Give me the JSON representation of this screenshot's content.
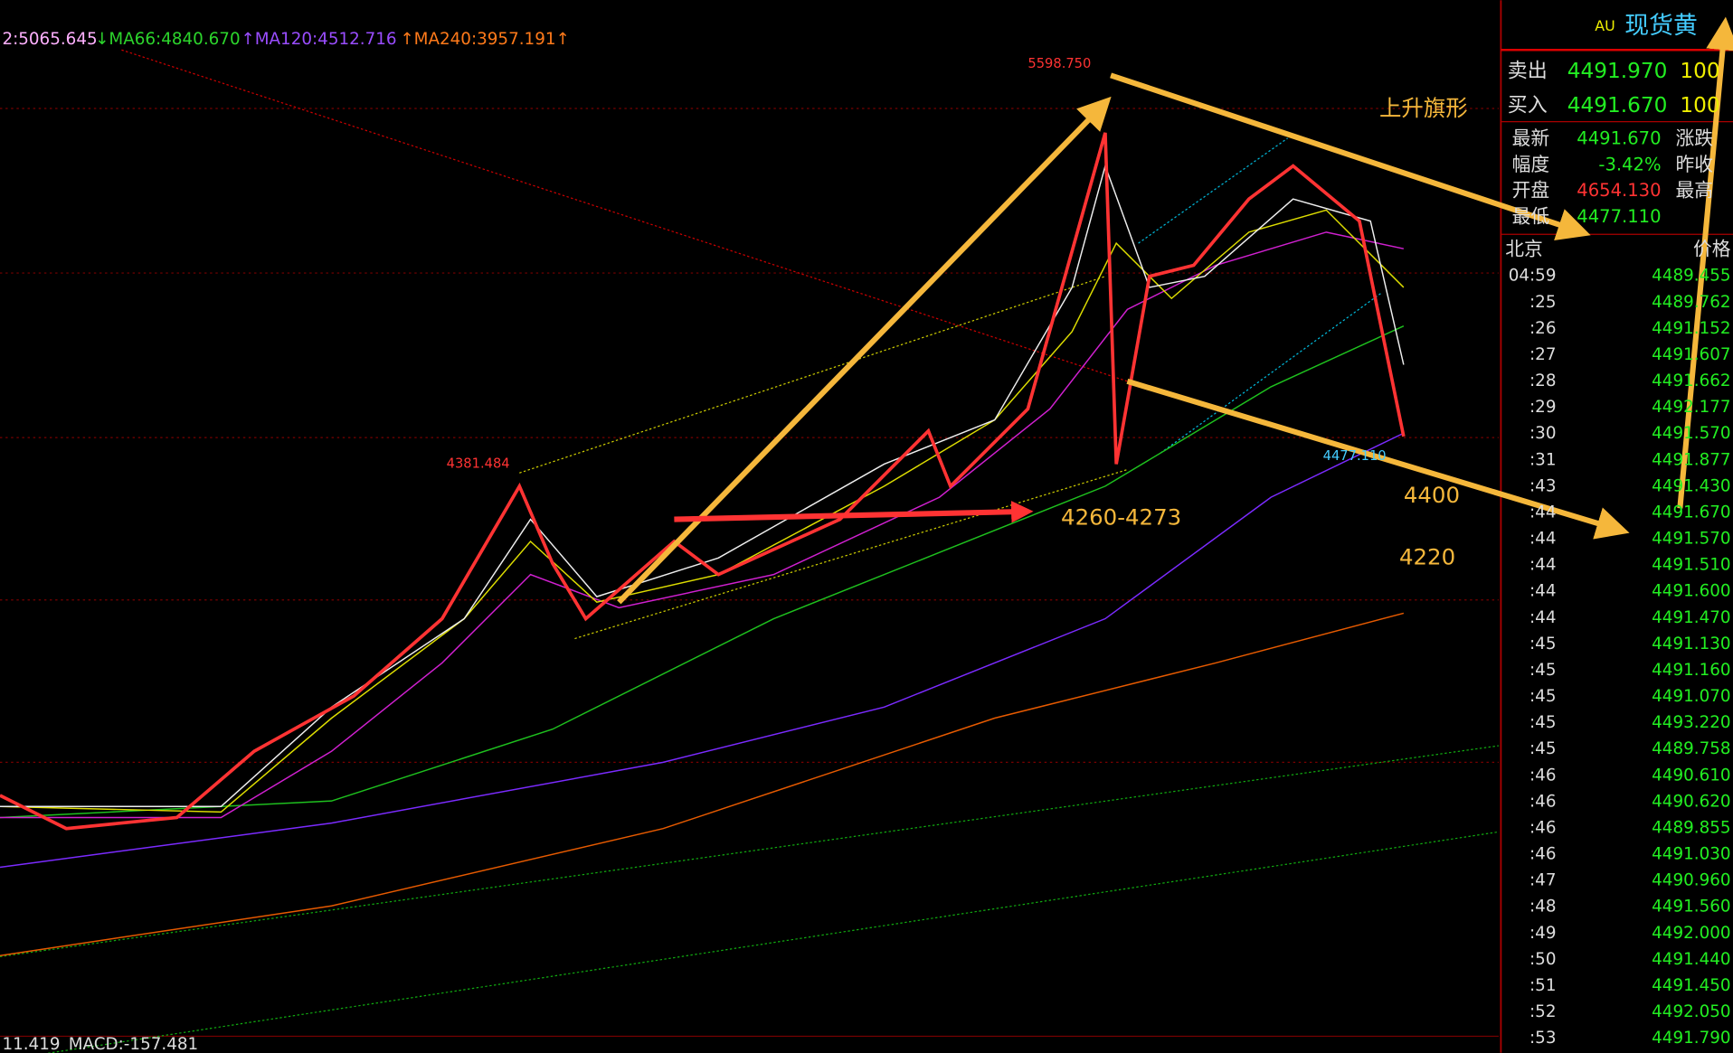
{
  "legend": {
    "ma_first": "2:5065.645",
    "ma66": "↓MA66:4840.670",
    "ma120": "↑MA120:4512.716",
    "ma240": "↑MA240:3957.191↑"
  },
  "annotations": {
    "high": "5598.750",
    "mid_high": "4381.484",
    "low": "4477.110",
    "pattern": "上升旗形",
    "target": "4260-4273",
    "level1": "4400",
    "level2": "4220"
  },
  "indicator": {
    "left": "11.419",
    "macd": "MACD:-157.481"
  },
  "quote": {
    "code": "AU",
    "name": "现货黄",
    "rows": [
      [
        "卖出",
        "4491.970",
        "100"
      ],
      [
        "买入",
        "4491.670",
        "100"
      ]
    ],
    "stats": [
      [
        "最新",
        "4491.670",
        "涨跌"
      ],
      [
        "幅度",
        "-3.42%",
        "昨收"
      ],
      [
        "开盘",
        "4654.130",
        "最高"
      ],
      [
        "最低",
        "4477.110"
      ]
    ]
  },
  "ticks": {
    "header": [
      "北京",
      "价格"
    ],
    "rows": [
      [
        "04:59",
        "4489.455"
      ],
      [
        ":25",
        "4489.762"
      ],
      [
        ":26",
        "4491.152"
      ],
      [
        ":27",
        "4491.607"
      ],
      [
        ":28",
        "4491.662"
      ],
      [
        ":29",
        "4492.177"
      ],
      [
        ":30",
        "4491.570"
      ],
      [
        ":31",
        "4491.877"
      ],
      [
        ":43",
        "4491.430"
      ],
      [
        ":44",
        "4491.670"
      ],
      [
        ":44",
        "4491.570"
      ],
      [
        ":44",
        "4491.510"
      ],
      [
        ":44",
        "4491.600"
      ],
      [
        ":44",
        "4491.470"
      ],
      [
        ":45",
        "4491.130"
      ],
      [
        ":45",
        "4491.160"
      ],
      [
        ":45",
        "4491.070"
      ],
      [
        ":45",
        "4493.220"
      ],
      [
        ":45",
        "4489.758"
      ],
      [
        ":46",
        "4490.610"
      ],
      [
        ":46",
        "4490.620"
      ],
      [
        ":46",
        "4489.855"
      ],
      [
        ":46",
        "4491.030"
      ],
      [
        ":47",
        "4490.960"
      ],
      [
        ":48",
        "4491.560"
      ],
      [
        ":49",
        "4492.000"
      ],
      [
        ":50",
        "4491.440"
      ],
      [
        ":51",
        "4491.450"
      ],
      [
        ":52",
        "4492.050"
      ],
      [
        ":53",
        "4491.790"
      ]
    ]
  }
}
